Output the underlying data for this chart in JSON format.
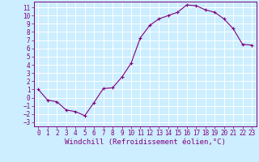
{
  "x": [
    0,
    1,
    2,
    3,
    4,
    5,
    6,
    7,
    8,
    9,
    10,
    11,
    12,
    13,
    14,
    15,
    16,
    17,
    18,
    19,
    20,
    21,
    22,
    23
  ],
  "y": [
    1.0,
    -0.3,
    -0.5,
    -1.5,
    -1.7,
    -2.2,
    -0.6,
    1.1,
    1.2,
    2.5,
    4.2,
    7.3,
    8.8,
    9.6,
    10.0,
    10.4,
    11.3,
    11.2,
    10.7,
    10.4,
    9.6,
    8.4,
    6.5,
    6.4
  ],
  "xlabel": "Windchill (Refroidissement éolien,°C)",
  "xlim": [
    -0.5,
    23.5
  ],
  "ylim": [
    -3.5,
    11.7
  ],
  "xticks": [
    0,
    1,
    2,
    3,
    4,
    5,
    6,
    7,
    8,
    9,
    10,
    11,
    12,
    13,
    14,
    15,
    16,
    17,
    18,
    19,
    20,
    21,
    22,
    23
  ],
  "yticks": [
    -3,
    -2,
    -1,
    0,
    1,
    2,
    3,
    4,
    5,
    6,
    7,
    8,
    9,
    10,
    11
  ],
  "line_color": "#800080",
  "bg_color": "#cceeff",
  "grid_color": "#ffffff",
  "tick_label_fontsize": 5.5,
  "xlabel_fontsize": 6.5
}
